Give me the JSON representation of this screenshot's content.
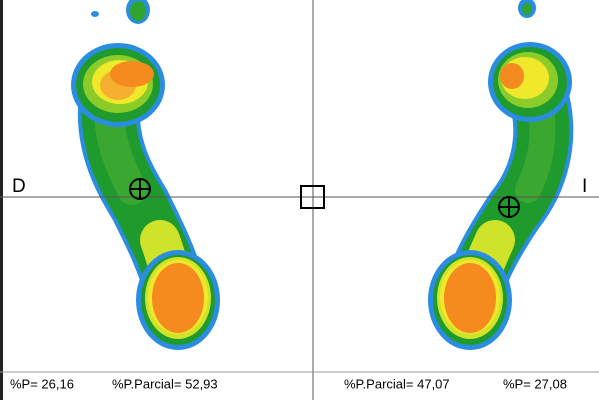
{
  "side_labels": {
    "left": "D",
    "right": "I"
  },
  "status_bar": {
    "left": [
      "%P= 26,16",
      "%P.Parcial= 52,93"
    ],
    "right": [
      "%P.Parcial= 47,07",
      "%P= 27,08"
    ]
  }
}
